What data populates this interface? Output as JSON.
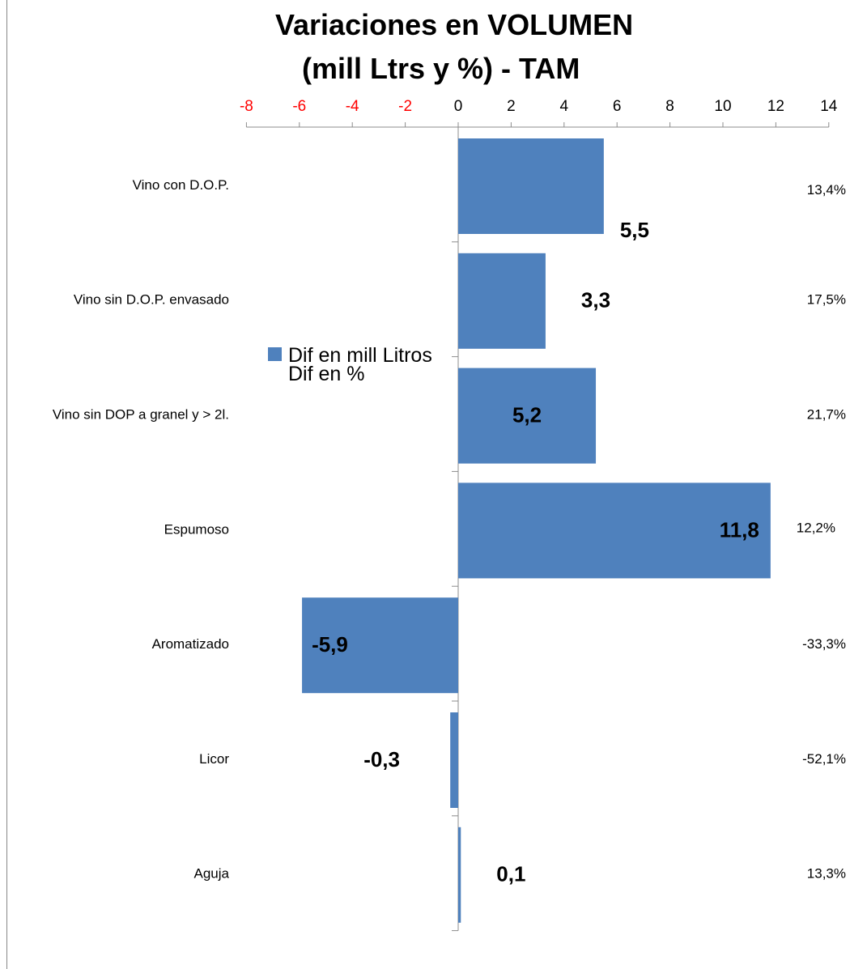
{
  "title_line1": "Variaciones en VOLUMEN",
  "title_line2": "(mill Ltrs y %) - TAM",
  "colors": {
    "bar": "#4f81bd",
    "negative_tick": "#ff0000",
    "axis": "#8c8c8c"
  },
  "chart_data": {
    "type": "bar",
    "orientation": "horizontal",
    "xlim": [
      -8,
      14
    ],
    "ticks": [
      -8,
      -6,
      -4,
      -2,
      0,
      2,
      4,
      6,
      8,
      10,
      12,
      14
    ],
    "grid": false,
    "legend_position": "left-center",
    "categories": [
      "Vino con D.O.P.",
      "Vino sin D.O.P. envasado",
      "Vino sin DOP a granel y > 2l.",
      "Espumoso",
      "Aromatizado",
      "Licor",
      "Aguja"
    ],
    "series": [
      {
        "name": "Dif en mill Litros",
        "values": [
          5.5,
          3.3,
          5.2,
          11.8,
          -5.9,
          -0.3,
          0.1
        ],
        "labels": [
          "5,5",
          "3,3",
          "5,2",
          "11,8",
          "-5,9",
          "-0,3",
          "0,1"
        ]
      },
      {
        "name": "Dif en %",
        "labels": [
          "13,4%",
          "17,5%",
          "21,7%",
          "12,2%",
          "-33,3%",
          "-52,1%",
          "13,3%"
        ]
      }
    ]
  }
}
